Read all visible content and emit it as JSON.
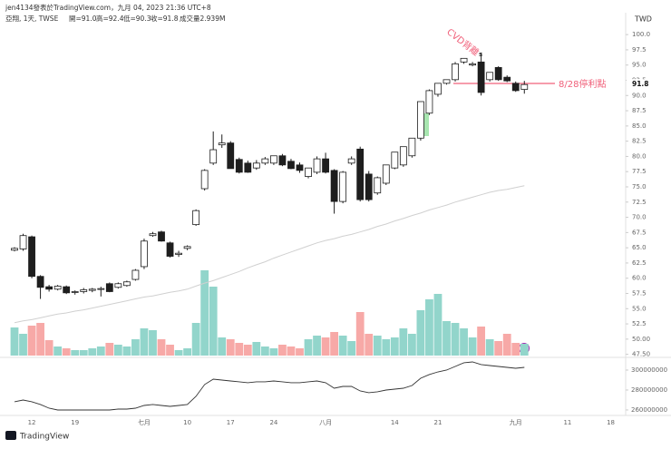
{
  "header": {
    "author_line": "jen4134發表於TradingView.com，九月 04, 2023 21:36 UTC+8",
    "symbol_line": "亞翔, 1天, TWSE",
    "ohlc_labels": [
      "開=91.0",
      "高=92.4",
      "低=90.3",
      "收=91.8"
    ],
    "volume_label": "成交量2.939M",
    "brand": "TradingView"
  },
  "chart_data": {
    "type": "candlestick",
    "currency": "TWD",
    "categories": [
      null,
      null,
      "12",
      null,
      null,
      null,
      null,
      "19",
      null,
      null,
      null,
      null,
      null,
      null,
      null,
      "七月",
      null,
      null,
      null,
      null,
      "10",
      null,
      null,
      null,
      null,
      "17",
      null,
      null,
      null,
      null,
      "24",
      null,
      null,
      null,
      null,
      null,
      "八月",
      null,
      null,
      null,
      null,
      null,
      null,
      null,
      "14",
      null,
      null,
      null,
      null,
      "21",
      null,
      null,
      null,
      null,
      null,
      null,
      null,
      null,
      "九月",
      null,
      null,
      null,
      null,
      null,
      "11",
      null,
      null,
      null,
      null,
      "18"
    ],
    "open": [
      64.6,
      64.8,
      66.8,
      60.3,
      58.6,
      58.2,
      58.6,
      57.7,
      57.8,
      58.0,
      58.2,
      59.1,
      58.5,
      58.8,
      59.8,
      61.9,
      67.0,
      67.6,
      65.8,
      63.9,
      64.9,
      68.8,
      74.7,
      78.9,
      81.9,
      82.2,
      79.5,
      78.9,
      78.1,
      78.9,
      78.9,
      80.1,
      79.2,
      78.6,
      76.7,
      77.4,
      79.6,
      77.7,
      72.6,
      78.9,
      81.2,
      77.1,
      74.0,
      75.6,
      78.1,
      78.6,
      80.1,
      83.0,
      87.1,
      90.2,
      92.0,
      92.6,
      95.5,
      95.0,
      95.5,
      92.6,
      94.6,
      93.0,
      92.0,
      91.0,
      null,
      null,
      null,
      null,
      null,
      null,
      null,
      null,
      null,
      null
    ],
    "high": [
      65.1,
      67.3,
      67.0,
      60.5,
      58.9,
      58.9,
      58.8,
      58.0,
      58.4,
      58.4,
      58.6,
      59.3,
      59.3,
      59.6,
      61.5,
      66.5,
      67.6,
      67.8,
      66.0,
      64.5,
      65.4,
      71.3,
      77.9,
      84.1,
      83.6,
      82.5,
      79.8,
      79.3,
      79.4,
      79.9,
      80.1,
      80.4,
      79.6,
      79.0,
      78.1,
      80.0,
      80.6,
      77.9,
      77.6,
      80.0,
      81.6,
      77.6,
      76.7,
      78.6,
      80.7,
      81.6,
      83.0,
      89.0,
      91.0,
      92.0,
      92.6,
      95.5,
      96.1,
      95.5,
      97.0,
      93.8,
      94.8,
      93.3,
      92.3,
      92.4,
      null,
      null,
      null,
      null,
      null,
      null,
      null,
      null,
      null,
      null
    ],
    "low": [
      64.4,
      64.5,
      60.0,
      56.6,
      57.8,
      58.0,
      57.4,
      57.3,
      57.5,
      57.7,
      57.0,
      57.7,
      58.3,
      58.6,
      59.6,
      61.5,
      66.8,
      66.0,
      63.4,
      63.5,
      64.6,
      68.6,
      74.4,
      78.6,
      81.4,
      78.0,
      77.2,
      77.3,
      77.8,
      78.6,
      78.6,
      78.4,
      77.9,
      77.3,
      76.4,
      77.1,
      77.2,
      70.6,
      72.3,
      78.6,
      72.6,
      72.6,
      73.7,
      75.3,
      77.9,
      78.3,
      79.8,
      82.6,
      86.8,
      89.8,
      91.8,
      92.3,
      95.2,
      94.8,
      90.0,
      92.3,
      92.4,
      92.2,
      90.6,
      90.3,
      null,
      null,
      null,
      null,
      null,
      null,
      null,
      null,
      null,
      null
    ],
    "close": [
      64.9,
      67.0,
      60.3,
      58.5,
      58.2,
      58.7,
      57.6,
      57.8,
      58.1,
      58.2,
      58.3,
      57.8,
      59.1,
      59.4,
      61.3,
      66.1,
      67.3,
      66.1,
      63.6,
      64.1,
      65.2,
      71.1,
      77.7,
      81.1,
      82.2,
      78.0,
      77.4,
      77.4,
      78.9,
      79.6,
      80.1,
      78.6,
      78.0,
      77.7,
      78.1,
      79.6,
      77.4,
      72.6,
      77.4,
      79.6,
      72.9,
      72.9,
      76.5,
      78.6,
      80.7,
      81.6,
      83.0,
      89.0,
      90.8,
      92.0,
      92.6,
      95.2,
      96.1,
      95.2,
      90.5,
      93.8,
      92.6,
      92.4,
      90.8,
      91.8,
      null,
      null,
      null,
      null,
      null,
      null,
      null,
      null,
      null,
      null
    ],
    "up_color": "#ffffff",
    "down_color": "#1e1e1e",
    "ylim": [
      47.0,
      103.0
    ],
    "yticks": [
      {
        "value": 100,
        "label": "100.0"
      },
      97.5,
      {
        "value": 95,
        "label": "95.0"
      },
      92.5,
      {
        "value": 90,
        "label": "90.0"
      },
      87.5,
      {
        "value": 85,
        "label": "85.0"
      },
      82.5,
      {
        "value": 80,
        "label": "80.0"
      },
      77.5,
      {
        "value": 75,
        "label": "75.0"
      },
      72.5,
      {
        "value": 70,
        "label": "70.0"
      },
      67.5,
      {
        "value": 65,
        "label": "65.0"
      },
      62.5,
      {
        "value": 60,
        "label": "60.0"
      },
      57.5,
      {
        "value": 55,
        "label": "55.0"
      },
      52.5,
      {
        "value": 50,
        "label": "50.00"
      },
      {
        "value": 47.5,
        "label": "47.50"
      }
    ],
    "last_price": {
      "value": 91.8,
      "label": "91.8"
    },
    "volume": {
      "up_color": "#92d5cb",
      "down_color": "#f7a9a7",
      "values": [
        7006000,
        5424000,
        7458000,
        8136000,
        3842000,
        2260000,
        1808000,
        1356000,
        1356000,
        1808000,
        2260000,
        3164000,
        2712000,
        2260000,
        4068000,
        6780000,
        6328000,
        4068000,
        2712000,
        1356000,
        1808000,
        8136000,
        21244000,
        17176000,
        4520000,
        4068000,
        3164000,
        2712000,
        3390000,
        2260000,
        1808000,
        2712000,
        2260000,
        1808000,
        4068000,
        4972000,
        4520000,
        5876000,
        4972000,
        3616000,
        10848000,
        5424000,
        4972000,
        4068000,
        4520000,
        6780000,
        5424000,
        11300000,
        14012000,
        15368000,
        8588000,
        8136000,
        6780000,
        4520000,
        7232000,
        4068000,
        3616000,
        5424000,
        3164000,
        2939000,
        null,
        null,
        null,
        null,
        null,
        null,
        null,
        null,
        null,
        null
      ]
    },
    "ma": {
      "color": "#d0d0d0",
      "values": [
        52.7,
        53.0,
        53.2,
        53.5,
        53.8,
        54.1,
        54.3,
        54.6,
        54.8,
        55.1,
        55.4,
        55.7,
        56.0,
        56.3,
        56.6,
        56.9,
        57.1,
        57.4,
        57.7,
        57.9,
        58.2,
        58.7,
        59.2,
        59.6,
        60.1,
        60.6,
        61.1,
        61.7,
        62.2,
        62.7,
        63.3,
        63.8,
        64.3,
        64.8,
        65.3,
        65.8,
        66.2,
        66.5,
        66.9,
        67.2,
        67.6,
        68.0,
        68.5,
        68.9,
        69.4,
        69.8,
        70.3,
        70.7,
        71.2,
        71.6,
        72.0,
        72.5,
        72.9,
        73.3,
        73.7,
        74.1,
        74.4,
        74.6,
        74.9,
        75.2,
        null,
        null,
        null,
        null,
        null,
        null,
        null,
        null,
        null,
        null
      ]
    },
    "obv": {
      "color": "#333333",
      "ylim": [
        254500000,
        311800000
      ],
      "yticks": [
        300000000,
        280000000,
        260000000
      ],
      "values": [
        268200000,
        270000000,
        268200000,
        265500000,
        261800000,
        260000000,
        260000000,
        260000000,
        260000000,
        260000000,
        260000000,
        260000000,
        260900000,
        260900000,
        261800000,
        264500000,
        265500000,
        264500000,
        263600000,
        264500000,
        265500000,
        273600000,
        285500000,
        290900000,
        290000000,
        289100000,
        288200000,
        287300000,
        288200000,
        288200000,
        289100000,
        288200000,
        287300000,
        287300000,
        288200000,
        289100000,
        287300000,
        281800000,
        283600000,
        283600000,
        279100000,
        277300000,
        278200000,
        280000000,
        280900000,
        281800000,
        284500000,
        291800000,
        295500000,
        298200000,
        300000000,
        303600000,
        307300000,
        308200000,
        305500000,
        304500000,
        303600000,
        302700000,
        301800000,
        302700000,
        null,
        null,
        null,
        null,
        null,
        null,
        null,
        null,
        null,
        null
      ]
    },
    "annotations": [
      "CVD背離",
      "8/28停利點",
      "s"
    ]
  }
}
